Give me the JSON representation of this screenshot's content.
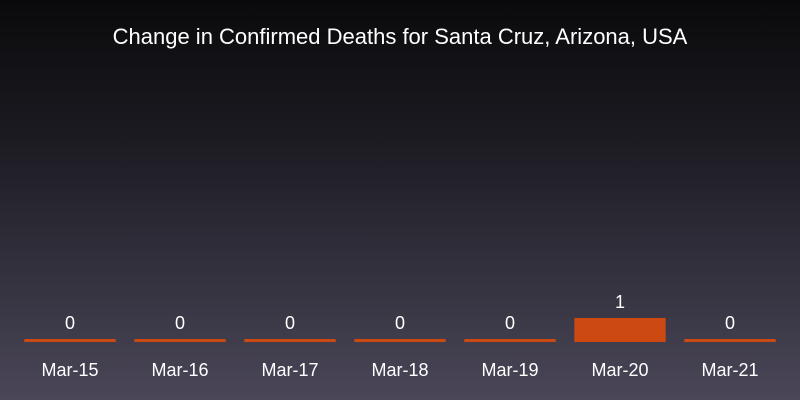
{
  "chart_data": {
    "type": "bar",
    "title": "Change in Confirmed Deaths for Santa Cruz, Arizona, USA",
    "xlabel": "",
    "ylabel": "",
    "categories": [
      "Mar-15",
      "Mar-16",
      "Mar-17",
      "Mar-18",
      "Mar-19",
      "Mar-20",
      "Mar-21"
    ],
    "values": [
      0,
      0,
      0,
      0,
      0,
      1,
      0
    ],
    "data_labels": [
      "0",
      "0",
      "0",
      "0",
      "0",
      "1",
      "0"
    ],
    "ylim": [
      0,
      1
    ],
    "grid": false,
    "legend": "none",
    "bar_color": "#cc4a12",
    "text_color": "#ffffff"
  }
}
